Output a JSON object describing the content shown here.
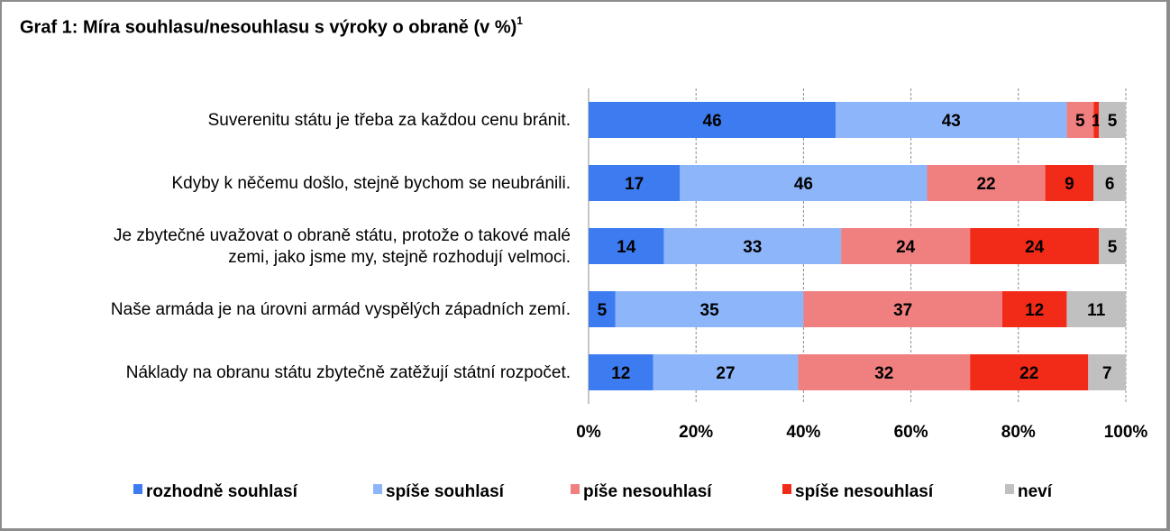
{
  "chart_data": {
    "type": "bar",
    "orientation": "horizontal",
    "stacked": true,
    "title": "Graf 1: Míra souhlasu/nesouhlasu s výroky o obraně (v %)",
    "title_footnote": "1",
    "categories": [
      [
        "Suverenitu státu je třeba za každou cenu bránit."
      ],
      [
        "Kdyby k něčemu došlo, stejně bychom se neubránili."
      ],
      [
        "Je zbytečné uvažovat o obraně státu, protože o takové malé",
        "zemi, jako jsme my, stejně rozhodují velmoci."
      ],
      [
        "Naše armáda je na úrovni armád vyspělých západních zemí."
      ],
      [
        "Náklady na obranu státu zbytečně zatěžují státní rozpočet."
      ]
    ],
    "series": [
      {
        "name": "rozhodně souhlasí",
        "color": "#3d7cf0",
        "values": [
          46,
          17,
          14,
          5,
          12
        ]
      },
      {
        "name": "spíše souhlasí",
        "color": "#8db5fa",
        "values": [
          43,
          46,
          33,
          35,
          27
        ]
      },
      {
        "name": "píše nesouhlasí",
        "color": "#f08080",
        "values": [
          5,
          22,
          24,
          37,
          32
        ]
      },
      {
        "name": "spíše nesouhlasí",
        "color": "#f22a18",
        "values": [
          1,
          9,
          24,
          12,
          22
        ]
      },
      {
        "name": "neví",
        "color": "#c0c0c0",
        "values": [
          5,
          6,
          5,
          11,
          7
        ]
      }
    ],
    "xlim": [
      0,
      100
    ],
    "x_ticks": [
      "0%",
      "20%",
      "40%",
      "60%",
      "80%",
      "100%"
    ],
    "grid": true,
    "legend_position": "bottom"
  }
}
